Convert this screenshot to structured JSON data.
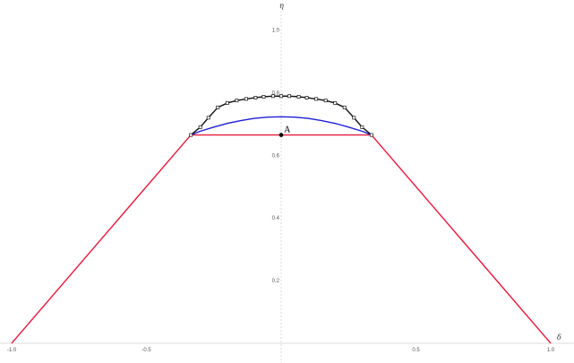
{
  "chart_data": {
    "type": "line",
    "xlabel": "δ",
    "ylabel": "η",
    "xlim": [
      -1.0,
      1.0
    ],
    "ylim": [
      0.0,
      1.1
    ],
    "grid": false,
    "x_ticks": [
      {
        "value": -1.0,
        "label": "-1.0"
      },
      {
        "value": -0.5,
        "label": "-0.5"
      },
      {
        "value": 0.5,
        "label": "0.5"
      },
      {
        "value": 1.0,
        "label": "1.0"
      }
    ],
    "y_ticks": [
      {
        "value": 0.2,
        "label": "0.2"
      },
      {
        "value": 0.4,
        "label": "0.4"
      },
      {
        "value": 0.6,
        "label": "0.6"
      },
      {
        "value": 0.8,
        "label": "0.8"
      },
      {
        "value": 1.0,
        "label": "1.0"
      }
    ],
    "series": [
      {
        "color": "#e8193c",
        "marker": "none",
        "x": [
          -1.0,
          -0.335,
          0.335,
          1.0
        ],
        "y": [
          0.0,
          0.665,
          0.665,
          0.0
        ]
      },
      {
        "color": "#1f1fd6",
        "marker": "none",
        "x": [
          -0.335,
          -0.3,
          -0.25,
          -0.2,
          -0.15,
          -0.1,
          -0.05,
          0.0,
          0.05,
          0.1,
          0.15,
          0.2,
          0.25,
          0.3,
          0.335
        ],
        "y": [
          0.665,
          0.677,
          0.69,
          0.702,
          0.711,
          0.718,
          0.722,
          0.723,
          0.722,
          0.718,
          0.711,
          0.702,
          0.69,
          0.677,
          0.665
        ]
      },
      {
        "color": "#111111",
        "marker": "square",
        "x": [
          -0.335,
          -0.3,
          -0.27,
          -0.235,
          -0.2,
          -0.165,
          -0.13,
          -0.095,
          -0.065,
          -0.03,
          0.0,
          0.03,
          0.065,
          0.095,
          0.13,
          0.165,
          0.2,
          0.235,
          0.27,
          0.3,
          0.335
        ],
        "y": [
          0.665,
          0.69,
          0.72,
          0.753,
          0.767,
          0.775,
          0.78,
          0.784,
          0.787,
          0.789,
          0.789,
          0.789,
          0.787,
          0.784,
          0.78,
          0.775,
          0.767,
          0.753,
          0.72,
          0.69,
          0.665
        ]
      }
    ],
    "annotations": [
      {
        "label": "A",
        "x": 0.0,
        "y": 0.665
      }
    ]
  }
}
